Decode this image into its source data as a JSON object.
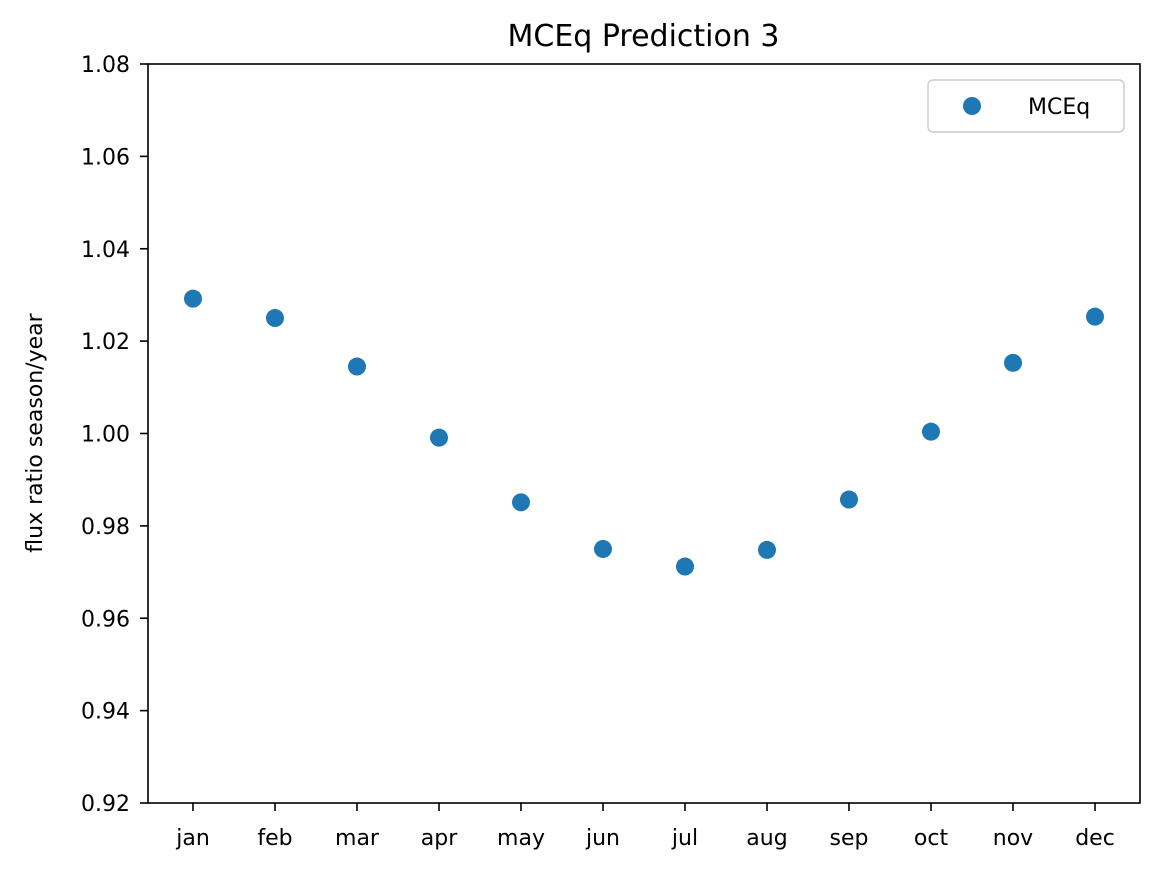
{
  "chart_data": {
    "type": "scatter",
    "title": "MCEq Prediction 3",
    "xlabel": "",
    "ylabel": "flux ratio season/year",
    "categories": [
      "jan",
      "feb",
      "mar",
      "apr",
      "may",
      "jun",
      "jul",
      "aug",
      "sep",
      "oct",
      "nov",
      "dec"
    ],
    "series": [
      {
        "name": "MCEq",
        "color": "#1f77b4",
        "values": [
          1.0292,
          1.025,
          1.0145,
          0.9991,
          0.9851,
          0.975,
          0.9712,
          0.9748,
          0.9857,
          1.0004,
          1.0153,
          1.0253
        ]
      }
    ],
    "ylim": [
      0.92,
      1.08
    ],
    "yticks": [
      "0.92",
      "0.94",
      "0.96",
      "0.98",
      "1.00",
      "1.02",
      "1.04",
      "1.06",
      "1.08"
    ],
    "grid": false,
    "legend_position": "top-right"
  }
}
